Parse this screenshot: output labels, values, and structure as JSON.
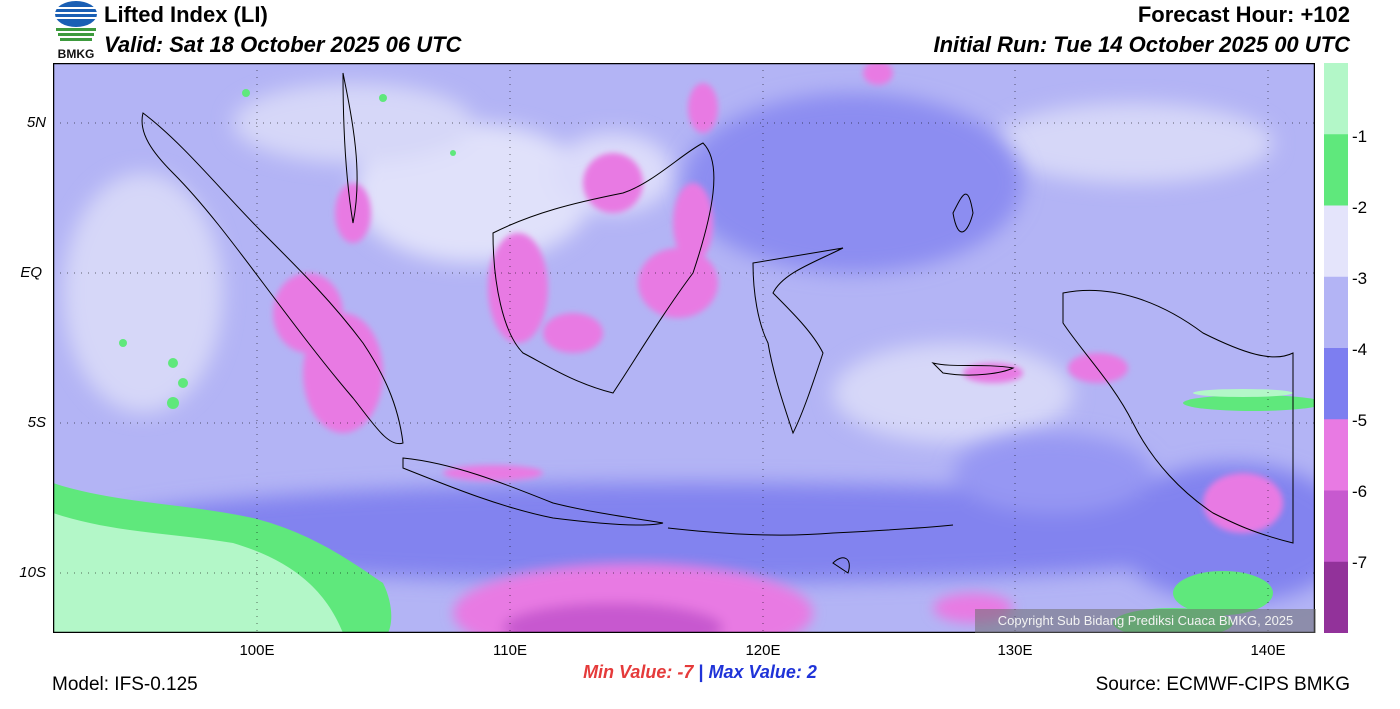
{
  "header": {
    "title": "Lifted Index (LI)",
    "valid": "Valid: Sat 18 October 2025 06 UTC",
    "forecast_hour": "Forecast Hour: +102",
    "initial_run": "Initial Run: Tue 14 October 2025 00 UTC",
    "logo_text": "BMKG"
  },
  "map": {
    "lat_labels": [
      "5N",
      "EQ",
      "5S",
      "10S"
    ],
    "lon_labels": [
      "100E",
      "110E",
      "120E",
      "130E",
      "140E"
    ],
    "copyright": "Copyright Sub Bidang Prediksi Cuaca BMKG, 2025",
    "grid_lines": "dotted"
  },
  "colorbar": {
    "labels": [
      "-1",
      "-2",
      "-3",
      "-4",
      "-5",
      "-6",
      "-7"
    ],
    "colors": [
      "#b3f7c8",
      "#5fe87c",
      "#e4e4fb",
      "#b3b4f5",
      "#7d7ef0",
      "#e87ae3",
      "#c759cf",
      "#92329a"
    ]
  },
  "footer": {
    "model": "Model: IFS-0.125",
    "min_label": "Min Value:",
    "min_value": "-7",
    "separator": "|",
    "max_label": "Max Value:",
    "max_value": "2",
    "source": "Source: ECMWF-CIPS BMKG"
  }
}
